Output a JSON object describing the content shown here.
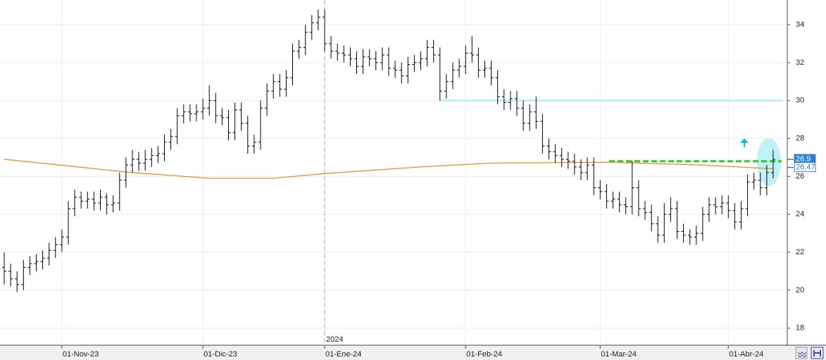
{
  "chart_data": {
    "type": "ohlc",
    "open": [
      21.2,
      21.0,
      20.6,
      20.3,
      21.2,
      21.4,
      21.5,
      21.7,
      22.1,
      22.4,
      22.8,
      24.3,
      24.9,
      24.7,
      24.8,
      24.6,
      24.9,
      24.5,
      24.6,
      25.8,
      26.6,
      26.9,
      26.7,
      26.9,
      27.1,
      27.2,
      27.8,
      28.1,
      29.2,
      29.4,
      29.3,
      29.4,
      29.6,
      30.0,
      29.2,
      29.1,
      28.3,
      29.5,
      28.8,
      27.6,
      27.8,
      29.6,
      30.5,
      31.0,
      30.6,
      31.2,
      32.6,
      32.8,
      33.6,
      34.1,
      34.4,
      33.0,
      32.6,
      32.5,
      32.4,
      32.2,
      31.8,
      32.3,
      32.2,
      32.0,
      32.4,
      31.7,
      31.6,
      31.3,
      31.9,
      32.0,
      32.2,
      32.8,
      32.4,
      30.5,
      31.0,
      31.6,
      31.8,
      32.5,
      32.4,
      31.6,
      31.7,
      31.2,
      30.2,
      29.9,
      30.1,
      29.6,
      28.8,
      29.4,
      28.9,
      27.6,
      27.3,
      27.1,
      26.9,
      26.8,
      26.5,
      26.2,
      26.6,
      25.4,
      25.2,
      24.7,
      24.8,
      24.5,
      24.4,
      25.4,
      24.3,
      24.1,
      23.5,
      22.9,
      24.0,
      24.3,
      23.1,
      22.9,
      22.8,
      23.0,
      24.0,
      24.5,
      24.4,
      24.6,
      24.2,
      23.6,
      24.3,
      25.7,
      25.8,
      25.4,
      26.2
    ],
    "high": [
      22.0,
      21.4,
      21.0,
      21.6,
      21.8,
      21.9,
      22.1,
      22.5,
      22.8,
      23.2,
      24.7,
      25.3,
      25.2,
      25.2,
      25.2,
      25.3,
      25.1,
      25.0,
      26.2,
      27.0,
      27.4,
      27.3,
      27.4,
      27.5,
      27.6,
      28.2,
      28.5,
      29.6,
      29.8,
      29.8,
      29.8,
      30.1,
      30.8,
      30.4,
      29.6,
      29.5,
      29.9,
      29.9,
      29.2,
      28.2,
      30.0,
      30.9,
      31.4,
      31.4,
      31.6,
      33.0,
      33.2,
      34.0,
      34.5,
      34.8,
      34.8,
      33.4,
      33.0,
      32.9,
      32.8,
      32.6,
      32.7,
      32.7,
      32.6,
      32.8,
      32.8,
      32.1,
      32.0,
      32.3,
      32.4,
      32.6,
      33.2,
      33.2,
      32.8,
      31.4,
      32.0,
      32.2,
      32.9,
      33.4,
      32.8,
      32.1,
      32.1,
      31.6,
      30.6,
      30.5,
      30.5,
      30.0,
      29.8,
      30.2,
      29.3,
      28.0,
      27.7,
      27.5,
      27.3,
      27.2,
      26.9,
      27.0,
      27.0,
      25.8,
      25.6,
      25.2,
      25.2,
      24.9,
      26.8,
      25.8,
      24.7,
      24.5,
      23.9,
      24.6,
      24.9,
      24.7,
      23.5,
      23.2,
      23.4,
      24.4,
      24.9,
      24.9,
      25.0,
      25.0,
      24.6,
      24.7,
      26.1,
      26.2,
      26.2,
      26.6,
      27.4
    ],
    "low": [
      20.3,
      20.2,
      19.9,
      20.0,
      20.8,
      21.0,
      21.1,
      21.3,
      21.7,
      22.0,
      22.4,
      23.9,
      24.3,
      24.3,
      24.2,
      24.2,
      24.0,
      24.1,
      24.2,
      25.4,
      26.2,
      26.3,
      26.3,
      26.5,
      26.7,
      26.8,
      27.4,
      27.7,
      28.8,
      28.9,
      28.9,
      29.0,
      29.2,
      28.8,
      28.7,
      27.9,
      27.9,
      28.4,
      27.2,
      27.2,
      27.4,
      29.2,
      30.1,
      30.2,
      30.2,
      30.8,
      32.2,
      32.4,
      33.2,
      33.7,
      32.6,
      32.2,
      32.1,
      32.0,
      31.8,
      31.4,
      31.4,
      31.8,
      31.6,
      31.6,
      31.3,
      31.2,
      30.9,
      30.9,
      31.5,
      31.6,
      31.8,
      32.0,
      30.0,
      30.1,
      30.6,
      31.2,
      31.4,
      32.0,
      31.2,
      31.2,
      30.8,
      29.8,
      29.5,
      29.5,
      29.2,
      28.4,
      28.4,
      28.5,
      27.2,
      26.9,
      26.7,
      26.5,
      26.4,
      26.1,
      25.8,
      25.8,
      25.0,
      24.8,
      24.3,
      24.3,
      24.1,
      24.0,
      24.0,
      23.9,
      23.7,
      23.1,
      22.5,
      22.5,
      23.6,
      22.7,
      22.5,
      22.4,
      22.4,
      22.6,
      23.6,
      24.0,
      24.0,
      23.8,
      23.2,
      23.2,
      23.9,
      25.3,
      25.0,
      25.0,
      25.9
    ],
    "close": [
      21.0,
      20.6,
      20.3,
      21.2,
      21.4,
      21.5,
      21.7,
      22.1,
      22.4,
      22.8,
      24.3,
      24.9,
      24.7,
      24.8,
      24.6,
      24.9,
      24.5,
      24.6,
      25.8,
      26.6,
      26.9,
      26.7,
      26.9,
      27.1,
      27.2,
      27.8,
      28.1,
      29.2,
      29.4,
      29.3,
      29.4,
      29.6,
      30.0,
      29.2,
      29.1,
      28.3,
      29.5,
      28.8,
      27.6,
      27.8,
      29.6,
      30.5,
      31.0,
      30.6,
      31.2,
      32.6,
      32.8,
      33.6,
      34.1,
      34.4,
      33.0,
      32.6,
      32.5,
      32.4,
      32.2,
      31.8,
      32.3,
      32.2,
      32.0,
      32.4,
      31.7,
      31.6,
      31.3,
      31.9,
      32.0,
      32.2,
      32.8,
      32.4,
      30.5,
      31.0,
      31.6,
      31.8,
      32.5,
      32.4,
      31.6,
      31.7,
      31.2,
      30.2,
      29.9,
      30.1,
      29.6,
      28.8,
      29.4,
      28.9,
      27.6,
      27.3,
      27.1,
      26.9,
      26.8,
      26.5,
      26.2,
      26.6,
      25.4,
      25.2,
      24.7,
      24.8,
      24.5,
      24.4,
      25.4,
      24.3,
      24.1,
      23.5,
      22.9,
      24.0,
      24.3,
      23.1,
      22.9,
      22.8,
      23.0,
      24.0,
      24.5,
      24.4,
      24.6,
      24.2,
      23.6,
      24.3,
      25.7,
      25.8,
      25.4,
      26.2,
      26.9
    ],
    "color": "#000000",
    "moving_average": {
      "x": [
        0,
        20,
        32,
        42,
        50,
        65,
        76,
        94,
        109,
        120
      ],
      "values": [
        26.9,
        26.2,
        25.9,
        25.9,
        26.15,
        26.5,
        26.7,
        26.75,
        26.6,
        26.4
      ],
      "color": "#e08a1e"
    },
    "levels": [
      {
        "value": 30,
        "start": 68,
        "color": "#bfefff",
        "style": "solid"
      },
      {
        "value": 26.8,
        "start": 94.4,
        "color": "#22cc22",
        "style": "dashed"
      }
    ],
    "price_labels": [
      {
        "value": 26.9,
        "label": "26,9"
      },
      {
        "value": 26.47,
        "label": "26,47"
      }
    ],
    "year_marker": {
      "value": 50,
      "label": "2024"
    },
    "xlim": [
      -0.66,
      122.2
    ],
    "ylim": [
      17.1,
      35.3
    ],
    "xticks": [
      {
        "value": 9,
        "label": "01-Nov-23"
      },
      {
        "value": 31,
        "label": "01-Dic-23"
      },
      {
        "value": 50,
        "label": "01-Ene-24"
      },
      {
        "value": 72,
        "label": "01-Feb-24"
      },
      {
        "value": 93,
        "label": "01-Mar-24"
      },
      {
        "value": 113,
        "label": "01-Abr-24"
      }
    ],
    "yticks": [
      18,
      20,
      22,
      24,
      26,
      28,
      30,
      32,
      34
    ],
    "grid": true
  }
}
